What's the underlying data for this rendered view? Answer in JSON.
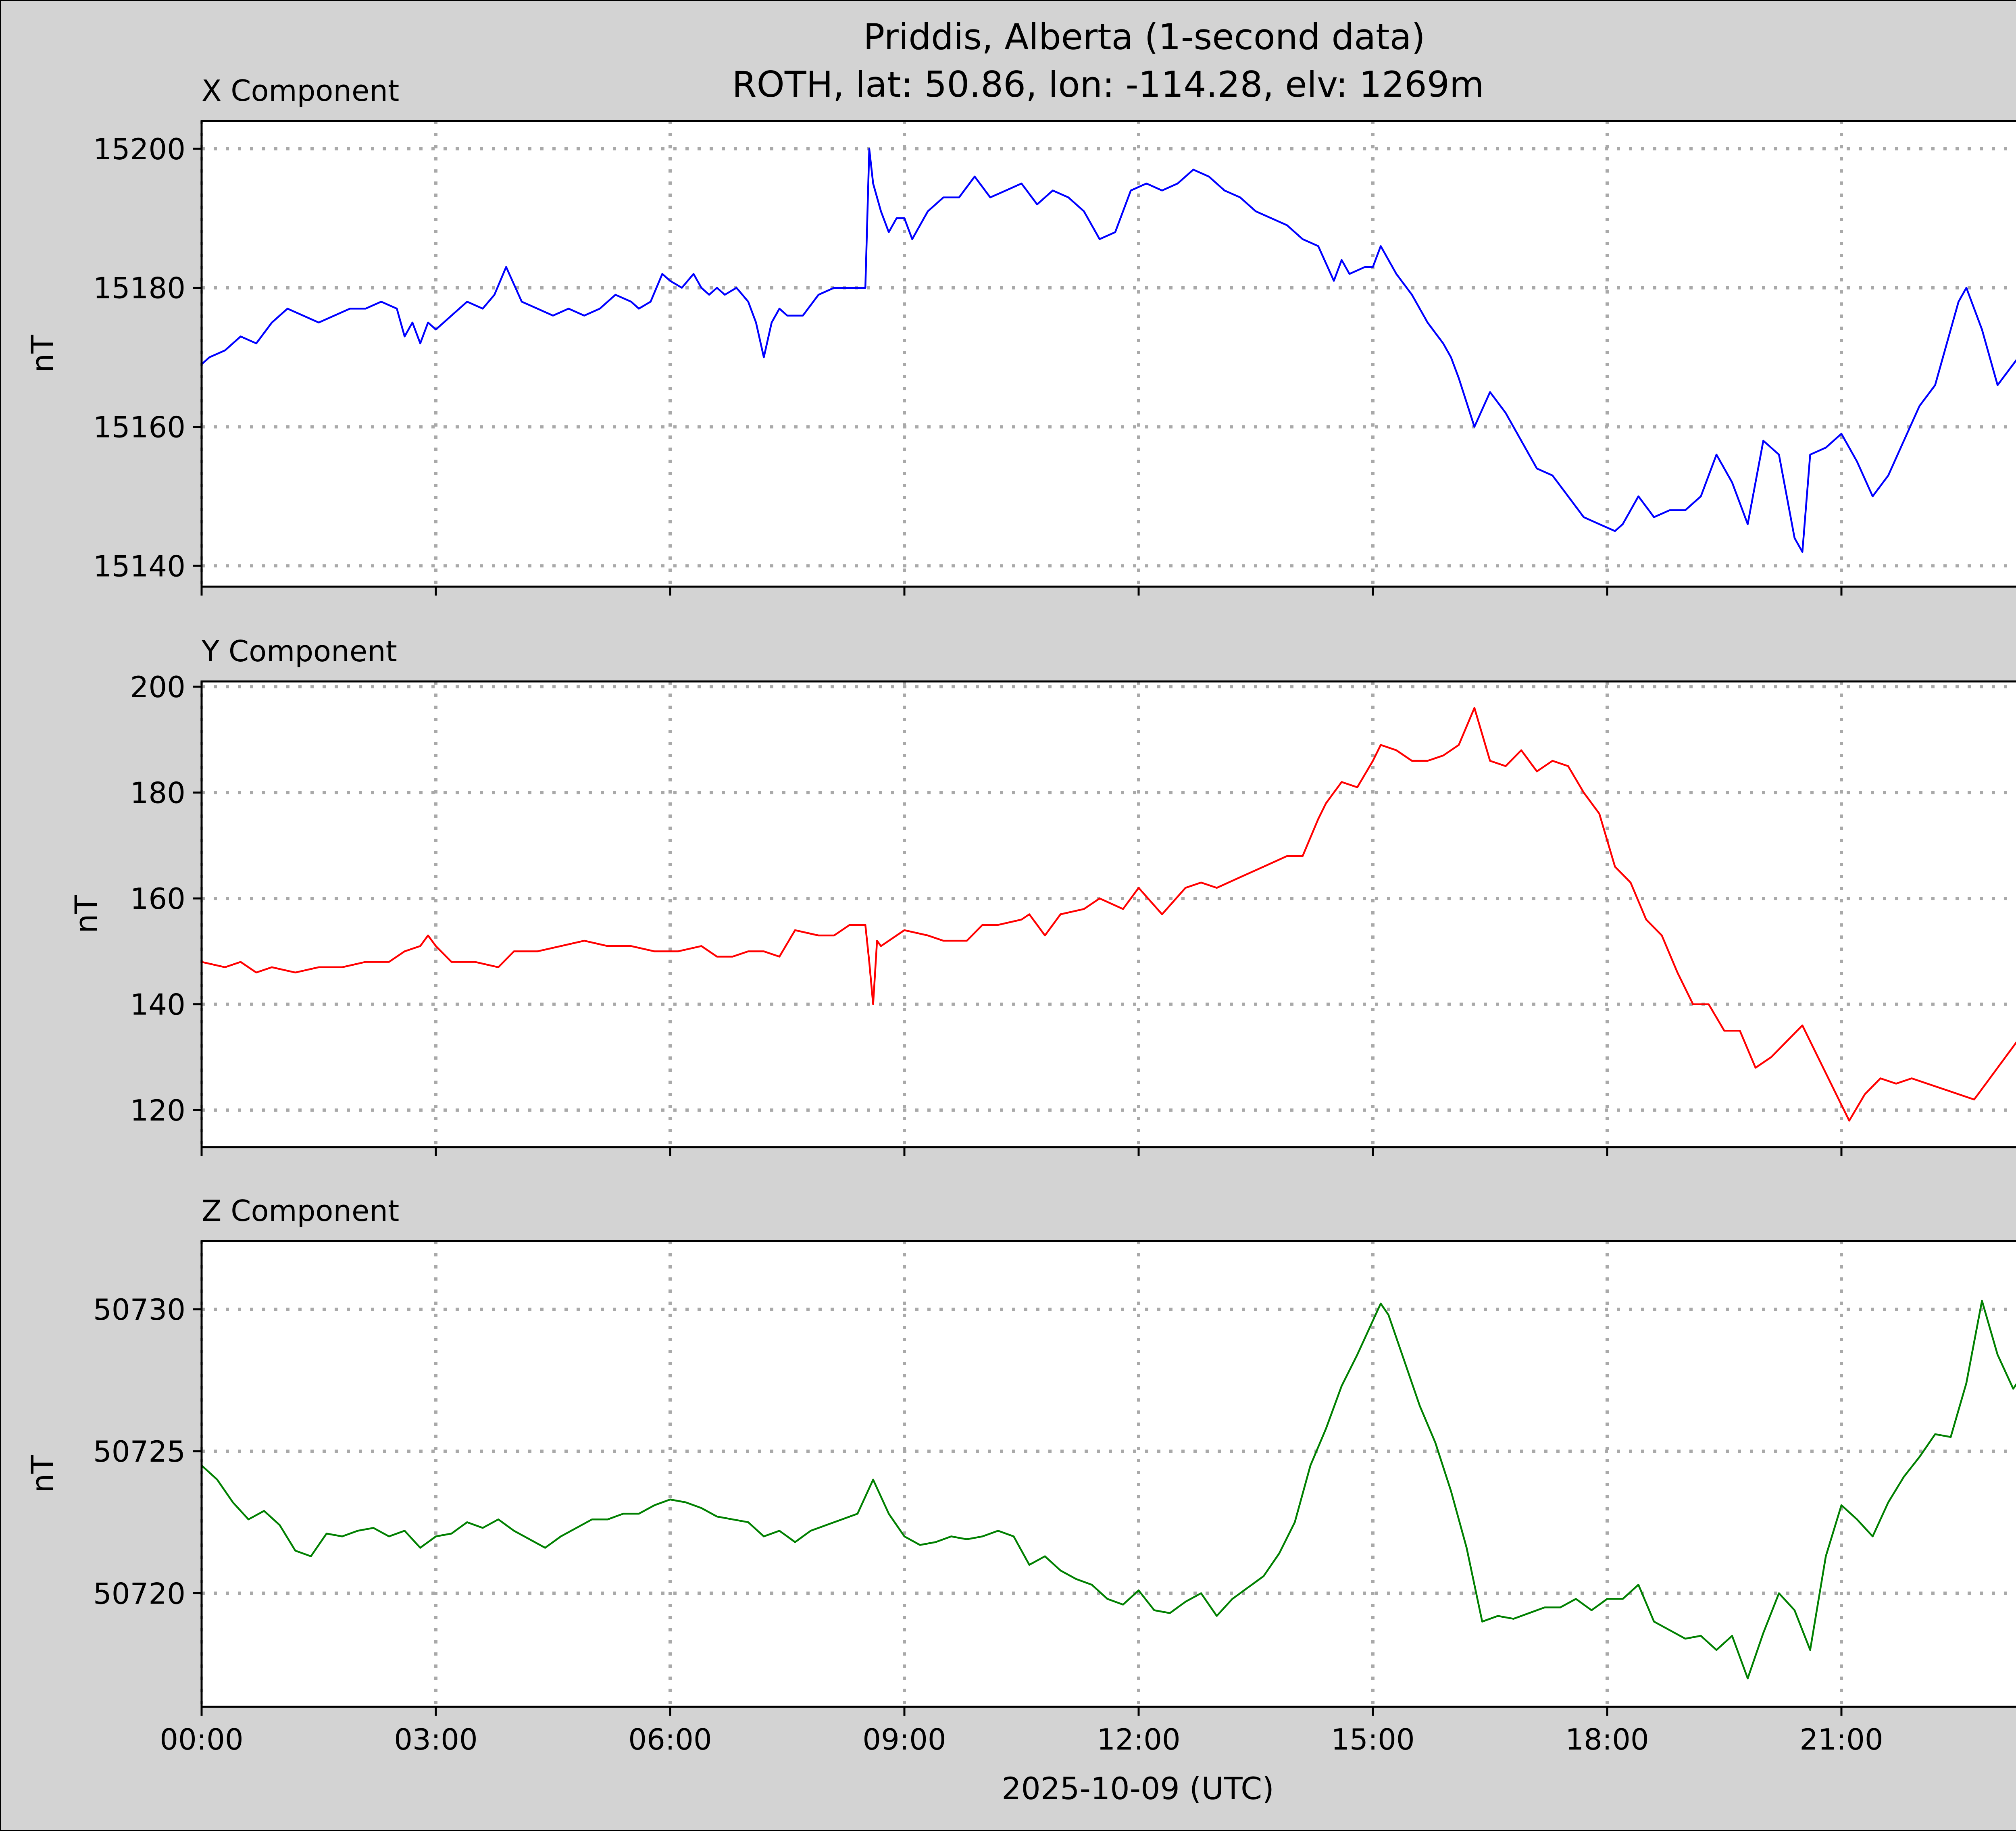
{
  "title_line1": "Priddis, Alberta (1-second data)",
  "title_line2": "ROTH, lat: 50.86, lon: -114.28, elv: 1269m",
  "xlabel": "2025-10-09 (UTC)",
  "chart_data": [
    {
      "type": "line",
      "panel_label": "X Component",
      "ylabel": "nT",
      "color": "#0000ff",
      "ylim": [
        15137,
        15204
      ],
      "yticks": [
        15200,
        15180,
        15160,
        15140
      ],
      "xlim": [
        0,
        24
      ],
      "xticks": [
        "00:00",
        "03:00",
        "06:00",
        "09:00",
        "12:00",
        "15:00",
        "18:00",
        "21:00"
      ],
      "x": [
        0,
        0.1,
        0.3,
        0.5,
        0.7,
        0.9,
        1.1,
        1.3,
        1.5,
        1.7,
        1.9,
        2.1,
        2.3,
        2.5,
        2.6,
        2.7,
        2.8,
        2.9,
        3.0,
        3.1,
        3.2,
        3.4,
        3.6,
        3.75,
        3.9,
        4.1,
        4.3,
        4.5,
        4.7,
        4.9,
        5.1,
        5.3,
        5.5,
        5.6,
        5.75,
        5.9,
        6.0,
        6.15,
        6.3,
        6.4,
        6.5,
        6.6,
        6.7,
        6.85,
        7.0,
        7.1,
        7.2,
        7.3,
        7.4,
        7.5,
        7.7,
        7.9,
        8.1,
        8.3,
        8.5,
        8.55,
        8.6,
        8.65,
        8.7,
        8.8,
        8.9,
        9.0,
        9.1,
        9.3,
        9.5,
        9.7,
        9.9,
        10.1,
        10.3,
        10.5,
        10.7,
        10.9,
        11.1,
        11.3,
        11.5,
        11.7,
        11.9,
        12.1,
        12.3,
        12.5,
        12.7,
        12.9,
        13.1,
        13.3,
        13.5,
        13.7,
        13.9,
        14.1,
        14.3,
        14.5,
        14.6,
        14.7,
        14.9,
        15.0,
        15.1,
        15.3,
        15.5,
        15.7,
        15.9,
        16.0,
        16.1,
        16.3,
        16.5,
        16.7,
        16.9,
        17.1,
        17.3,
        17.5,
        17.7,
        17.9,
        18.1,
        18.2,
        18.4,
        18.6,
        18.8,
        19.0,
        19.2,
        19.4,
        19.6,
        19.8,
        20.0,
        20.2,
        20.4,
        20.5,
        20.6,
        20.8,
        21.0,
        21.2,
        21.4,
        21.6,
        21.8,
        22.0,
        22.2,
        22.4,
        22.5,
        22.6,
        22.8,
        23.0,
        23.2,
        23.4,
        23.6,
        23.8,
        23.99
      ],
      "y": [
        15169,
        15170,
        15171,
        15173,
        15172,
        15175,
        15177,
        15176,
        15175,
        15176,
        15177,
        15177,
        15178,
        15177,
        15173,
        15175,
        15172,
        15175,
        15174,
        15175,
        15176,
        15178,
        15177,
        15179,
        15183,
        15178,
        15177,
        15176,
        15177,
        15176,
        15177,
        15179,
        15178,
        15177,
        15178,
        15182,
        15181,
        15180,
        15182,
        15180,
        15179,
        15180,
        15179,
        15180,
        15178,
        15175,
        15170,
        15175,
        15177,
        15176,
        15176,
        15179,
        15180,
        15180,
        15180,
        15200,
        15195,
        15193,
        15191,
        15188,
        15190,
        15190,
        15187,
        15191,
        15193,
        15193,
        15196,
        15193,
        15194,
        15195,
        15192,
        15194,
        15193,
        15191,
        15187,
        15188,
        15194,
        15195,
        15194,
        15195,
        15197,
        15196,
        15194,
        15193,
        15191,
        15190,
        15189,
        15187,
        15186,
        15181,
        15184,
        15182,
        15183,
        15183,
        15186,
        15182,
        15179,
        15175,
        15172,
        15170,
        15167,
        15160,
        15165,
        15162,
        15158,
        15154,
        15153,
        15150,
        15147,
        15146,
        15145,
        15146,
        15150,
        15147,
        15148,
        15148,
        15150,
        15156,
        15152,
        15146,
        15158,
        15156,
        15144,
        15142,
        15156,
        15157,
        15159,
        15155,
        15150,
        15153,
        15158,
        15163,
        15166,
        15174,
        15178,
        15180,
        15174,
        15166,
        15169,
        15172,
        15178,
        15168,
        15167
      ]
    },
    {
      "type": "line",
      "panel_label": "Y Component",
      "ylabel": "nT",
      "color": "#ff0000",
      "ylim": [
        113,
        201
      ],
      "yticks": [
        200,
        180,
        160,
        140,
        120
      ],
      "xlim": [
        0,
        24
      ],
      "xticks": [
        "00:00",
        "03:00",
        "06:00",
        "09:00",
        "12:00",
        "15:00",
        "18:00",
        "21:00"
      ],
      "x": [
        0,
        0.3,
        0.5,
        0.7,
        0.9,
        1.2,
        1.5,
        1.8,
        2.1,
        2.4,
        2.6,
        2.8,
        2.9,
        3.0,
        3.2,
        3.5,
        3.8,
        4.0,
        4.3,
        4.6,
        4.9,
        5.2,
        5.5,
        5.8,
        6.1,
        6.4,
        6.6,
        6.8,
        7.0,
        7.2,
        7.4,
        7.6,
        7.9,
        8.1,
        8.3,
        8.5,
        8.55,
        8.6,
        8.65,
        8.7,
        9.0,
        9.3,
        9.5,
        9.8,
        10.0,
        10.2,
        10.5,
        10.6,
        10.8,
        11.0,
        11.3,
        11.5,
        11.8,
        12.0,
        12.3,
        12.6,
        12.8,
        13.0,
        13.3,
        13.6,
        13.9,
        14.1,
        14.3,
        14.4,
        14.5,
        14.6,
        14.8,
        15.0,
        15.1,
        15.3,
        15.5,
        15.7,
        15.9,
        16.1,
        16.3,
        16.5,
        16.7,
        16.9,
        17.1,
        17.3,
        17.5,
        17.7,
        17.9,
        18.1,
        18.3,
        18.5,
        18.7,
        18.9,
        19.1,
        19.3,
        19.5,
        19.7,
        19.9,
        20.1,
        20.3,
        20.5,
        20.7,
        20.9,
        21.0,
        21.1,
        21.3,
        21.5,
        21.7,
        21.9,
        22.1,
        22.3,
        22.5,
        22.7,
        22.9,
        23.1,
        23.3,
        23.5,
        23.7,
        23.99
      ],
      "y": [
        148,
        147,
        148,
        146,
        147,
        146,
        147,
        147,
        148,
        148,
        150,
        151,
        153,
        151,
        148,
        148,
        147,
        150,
        150,
        151,
        152,
        151,
        151,
        150,
        150,
        151,
        149,
        149,
        150,
        150,
        149,
        154,
        153,
        153,
        155,
        155,
        148,
        140,
        152,
        151,
        154,
        153,
        152,
        152,
        155,
        155,
        156,
        157,
        153,
        157,
        158,
        160,
        158,
        162,
        157,
        162,
        163,
        162,
        164,
        166,
        168,
        168,
        175,
        178,
        180,
        182,
        181,
        186,
        189,
        188,
        186,
        186,
        187,
        189,
        196,
        186,
        185,
        188,
        184,
        186,
        185,
        180,
        176,
        166,
        163,
        156,
        153,
        146,
        140,
        140,
        135,
        135,
        128,
        130,
        133,
        136,
        130,
        124,
        121,
        118,
        123,
        126,
        125,
        126,
        125,
        124,
        123,
        122,
        126,
        130,
        134,
        126,
        122,
        132
      ]
    },
    {
      "type": "line",
      "panel_label": "Z Component",
      "ylabel": "nT",
      "color": "#008000",
      "ylim": [
        50716,
        50732.4
      ],
      "yticks": [
        50730,
        50725,
        50720
      ],
      "xlim": [
        0,
        24
      ],
      "xticks": [
        "00:00",
        "03:00",
        "06:00",
        "09:00",
        "12:00",
        "15:00",
        "18:00",
        "21:00"
      ],
      "x": [
        0,
        0.2,
        0.4,
        0.6,
        0.8,
        1.0,
        1.2,
        1.4,
        1.6,
        1.8,
        2.0,
        2.2,
        2.4,
        2.6,
        2.8,
        3.0,
        3.2,
        3.4,
        3.6,
        3.8,
        4.0,
        4.2,
        4.4,
        4.6,
        4.8,
        5.0,
        5.2,
        5.4,
        5.6,
        5.8,
        6.0,
        6.2,
        6.4,
        6.6,
        6.8,
        7.0,
        7.2,
        7.4,
        7.6,
        7.8,
        8.0,
        8.2,
        8.4,
        8.6,
        8.8,
        9.0,
        9.2,
        9.4,
        9.6,
        9.8,
        10.0,
        10.2,
        10.4,
        10.6,
        10.8,
        11.0,
        11.2,
        11.4,
        11.6,
        11.8,
        12.0,
        12.2,
        12.4,
        12.6,
        12.8,
        13.0,
        13.2,
        13.4,
        13.6,
        13.8,
        14.0,
        14.2,
        14.4,
        14.6,
        14.8,
        15.0,
        15.1,
        15.2,
        15.4,
        15.6,
        15.8,
        16.0,
        16.2,
        16.4,
        16.6,
        16.8,
        17.0,
        17.2,
        17.4,
        17.6,
        17.8,
        18.0,
        18.2,
        18.4,
        18.6,
        18.8,
        19.0,
        19.2,
        19.4,
        19.6,
        19.8,
        20.0,
        20.2,
        20.4,
        20.6,
        20.8,
        21.0,
        21.2,
        21.4,
        21.6,
        21.8,
        22.0,
        22.2,
        22.4,
        22.6,
        22.8,
        23.0,
        23.2,
        23.4,
        23.6,
        23.8,
        23.99
      ],
      "y": [
        50724.5,
        50724.0,
        50723.2,
        50722.6,
        50722.9,
        50722.4,
        50721.5,
        50721.3,
        50722.1,
        50722.0,
        50722.2,
        50722.3,
        50722.0,
        50722.2,
        50721.6,
        50722.0,
        50722.1,
        50722.5,
        50722.3,
        50722.6,
        50722.2,
        50721.9,
        50721.6,
        50722.0,
        50722.3,
        50722.6,
        50722.6,
        50722.8,
        50722.8,
        50723.1,
        50723.3,
        50723.2,
        50723.0,
        50722.7,
        50722.6,
        50722.5,
        50722.0,
        50722.2,
        50721.8,
        50722.2,
        50722.4,
        50722.6,
        50722.8,
        50724.0,
        50722.8,
        50722.0,
        50721.7,
        50721.8,
        50722.0,
        50721.9,
        50722.0,
        50722.2,
        50722.0,
        50721.0,
        50721.3,
        50720.8,
        50720.5,
        50720.3,
        50719.8,
        50719.6,
        50720.1,
        50719.4,
        50719.3,
        50719.7,
        50720.0,
        50719.2,
        50719.8,
        50720.2,
        50720.6,
        50721.4,
        50722.5,
        50724.5,
        50725.8,
        50727.3,
        50728.4,
        50729.6,
        50730.2,
        50729.8,
        50728.2,
        50726.6,
        50725.3,
        50723.6,
        50721.6,
        50719.0,
        50719.2,
        50719.1,
        50719.3,
        50719.5,
        50719.5,
        50719.8,
        50719.4,
        50719.8,
        50719.8,
        50720.3,
        50719.0,
        50718.7,
        50718.4,
        50718.5,
        50718.0,
        50718.5,
        50717.0,
        50718.6,
        50720.0,
        50719.4,
        50718.0,
        50721.3,
        50723.1,
        50722.6,
        50722.0,
        50723.2,
        50724.1,
        50724.8,
        50725.6,
        50725.5,
        50727.4,
        50730.3,
        50728.4,
        50727.2,
        50728.0,
        50730.8,
        50729.6,
        50728.1
      ]
    }
  ]
}
